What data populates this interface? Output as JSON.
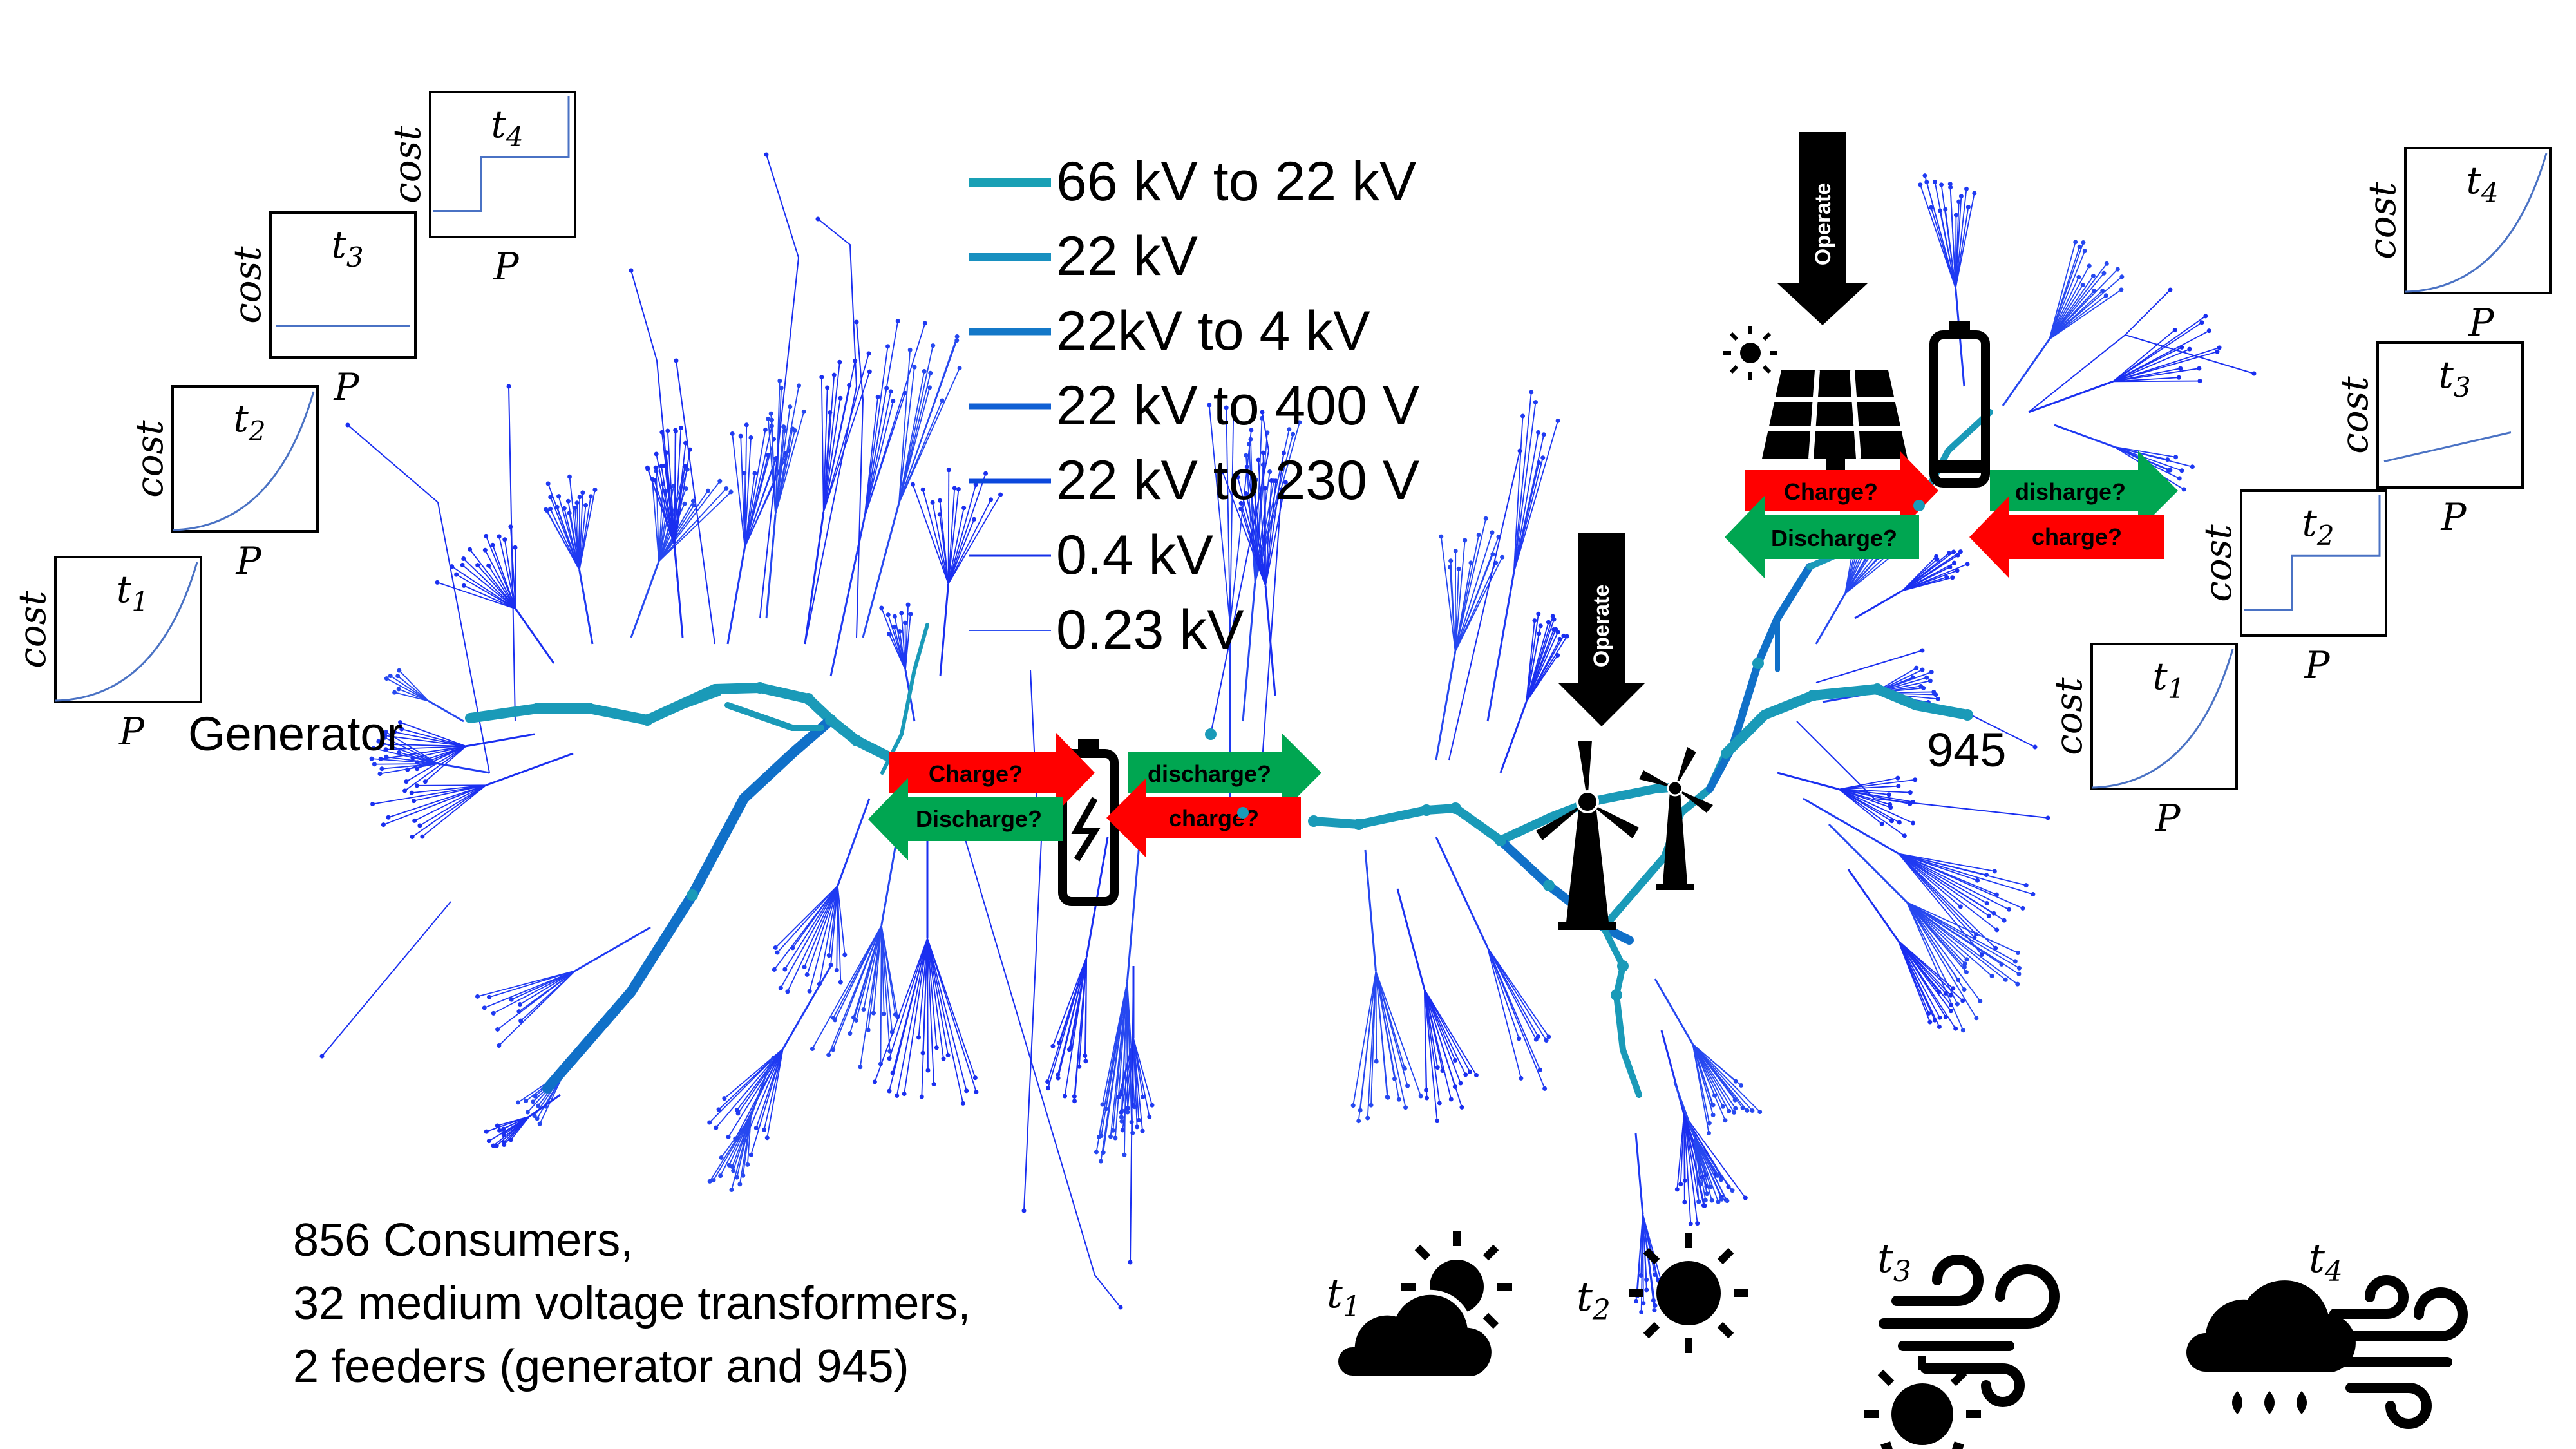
{
  "legend": {
    "items": [
      {
        "label": "66 kV to 22 kV",
        "color": "#19a0b5"
      },
      {
        "label": "22 kV",
        "color": "#1890c0"
      },
      {
        "label": "22kV to 4 kV",
        "color": "#1478c8"
      },
      {
        "label": "22 kV to 400 V",
        "color": "#1060d4"
      },
      {
        "label": "22 kV to 230 V",
        "color": "#0c48dc"
      },
      {
        "label": "0.4 kV",
        "color": "#1530e8"
      },
      {
        "label": "0.23 kV",
        "color": "#3050f0"
      }
    ]
  },
  "nodes": {
    "generator": "Generator",
    "feeder2": "945"
  },
  "summary": {
    "line1": "856 Consumers,",
    "line2": "32 medium voltage transformers,",
    "line3": "2 feeders (generator and 945)"
  },
  "cost_plots": {
    "ylabel": "cost",
    "xlabel": "P",
    "left": [
      {
        "t": "t",
        "sub": "1",
        "shape": "convex"
      },
      {
        "t": "t",
        "sub": "2",
        "shape": "convex"
      },
      {
        "t": "t",
        "sub": "3",
        "shape": "flat"
      },
      {
        "t": "t",
        "sub": "4",
        "shape": "step"
      }
    ],
    "right": [
      {
        "t": "t",
        "sub": "1",
        "shape": "convex"
      },
      {
        "t": "t",
        "sub": "2",
        "shape": "step"
      },
      {
        "t": "t",
        "sub": "3",
        "shape": "linear"
      },
      {
        "t": "t",
        "sub": "4",
        "shape": "convex"
      }
    ]
  },
  "storage": {
    "left": {
      "charge_in": "Charge?",
      "discharge_in": "Discharge?",
      "discharge_out": "discharge?",
      "charge_out": "charge?"
    },
    "right": {
      "charge_in": "Charge?",
      "discharge_in": "Discharge?",
      "discharge_out": "disharge?",
      "charge_out": "charge?"
    }
  },
  "operate": {
    "wind": "Operate",
    "solar": "Operate"
  },
  "weather": [
    {
      "t": "t",
      "sub": "1",
      "icon": "sun-cloud-icon"
    },
    {
      "t": "t",
      "sub": "2",
      "icon": "sun-icon"
    },
    {
      "t": "t",
      "sub": "3",
      "icon": "wind-sun-icon"
    },
    {
      "t": "t",
      "sub": "4",
      "icon": "rain-wind-icon"
    }
  ],
  "colors": {
    "trunk": "#1a9ab8",
    "branch": "#1070c8",
    "lateral": "#1a2ff0",
    "red_arrow": "#ff0000",
    "green_arrow": "#00a651",
    "black": "#000000"
  }
}
